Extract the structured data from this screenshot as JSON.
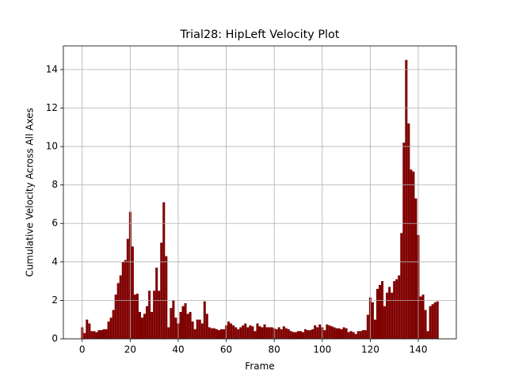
{
  "chart_data": {
    "type": "bar",
    "title": "Trial28: HipLeft Velocity Plot",
    "xlabel": "Frame",
    "ylabel": "Cumulative Velocity Across All Axes",
    "color": "#800000",
    "grid": true,
    "x": [
      0,
      1,
      2,
      3,
      4,
      5,
      6,
      7,
      8,
      9,
      10,
      11,
      12,
      13,
      14,
      15,
      16,
      17,
      18,
      19,
      20,
      21,
      22,
      23,
      24,
      25,
      26,
      27,
      28,
      29,
      30,
      31,
      32,
      33,
      34,
      35,
      36,
      37,
      38,
      39,
      40,
      41,
      42,
      43,
      44,
      45,
      46,
      47,
      48,
      49,
      50,
      51,
      52,
      53,
      54,
      55,
      56,
      57,
      58,
      59,
      60,
      61,
      62,
      63,
      64,
      65,
      66,
      67,
      68,
      69,
      70,
      71,
      72,
      73,
      74,
      75,
      76,
      77,
      78,
      79,
      80,
      81,
      82,
      83,
      84,
      85,
      86,
      87,
      88,
      89,
      90,
      91,
      92,
      93,
      94,
      95,
      96,
      97,
      98,
      99,
      100,
      101,
      102,
      103,
      104,
      105,
      106,
      107,
      108,
      109,
      110,
      111,
      112,
      113,
      114,
      115,
      116,
      117,
      118,
      119,
      120,
      121,
      122,
      123,
      124,
      125,
      126,
      127,
      128,
      129,
      130,
      131,
      132,
      133,
      134,
      135,
      136,
      137,
      138,
      139,
      140,
      141,
      142,
      143,
      144,
      145,
      146,
      147,
      148
    ],
    "values": [
      0.6,
      0.3,
      1.0,
      0.8,
      0.4,
      0.4,
      0.35,
      0.45,
      0.45,
      0.5,
      0.5,
      0.9,
      1.1,
      1.5,
      2.3,
      2.9,
      3.3,
      4.0,
      4.1,
      5.2,
      6.6,
      4.8,
      2.3,
      2.35,
      1.4,
      1.1,
      1.3,
      1.7,
      2.5,
      1.4,
      2.5,
      3.7,
      2.5,
      5.0,
      7.1,
      4.3,
      0.6,
      1.6,
      2.0,
      1.1,
      0.8,
      1.4,
      1.7,
      1.85,
      1.3,
      1.4,
      0.9,
      0.5,
      1.0,
      1.0,
      0.8,
      1.95,
      1.3,
      0.6,
      0.55,
      0.55,
      0.5,
      0.45,
      0.5,
      0.5,
      0.7,
      0.9,
      0.8,
      0.7,
      0.6,
      0.5,
      0.6,
      0.7,
      0.8,
      0.6,
      0.7,
      0.65,
      0.4,
      0.8,
      0.65,
      0.6,
      0.75,
      0.6,
      0.6,
      0.6,
      0.55,
      0.5,
      0.6,
      0.5,
      0.65,
      0.55,
      0.5,
      0.4,
      0.35,
      0.35,
      0.4,
      0.4,
      0.35,
      0.5,
      0.45,
      0.45,
      0.5,
      0.7,
      0.6,
      0.75,
      0.6,
      0.45,
      0.75,
      0.7,
      0.65,
      0.6,
      0.55,
      0.55,
      0.5,
      0.6,
      0.55,
      0.35,
      0.4,
      0.35,
      0.25,
      0.4,
      0.4,
      0.45,
      0.45,
      1.25,
      2.15,
      1.9,
      1.0,
      2.6,
      2.8,
      3.0,
      1.7,
      2.4,
      2.7,
      2.4,
      3.0,
      3.1,
      3.3,
      5.5,
      10.2,
      14.5,
      11.2,
      8.8,
      8.7,
      7.3,
      5.4,
      2.2,
      2.3,
      1.5,
      0.4,
      1.7,
      1.8,
      1.9,
      1.95
    ],
    "xlim": [
      -7.84,
      155.84
    ],
    "xticks": [
      0,
      20,
      40,
      60,
      80,
      100,
      120,
      140
    ],
    "ylim": [
      0,
      15.23
    ],
    "yticks": [
      0,
      2,
      4,
      6,
      8,
      10,
      12,
      14
    ]
  }
}
